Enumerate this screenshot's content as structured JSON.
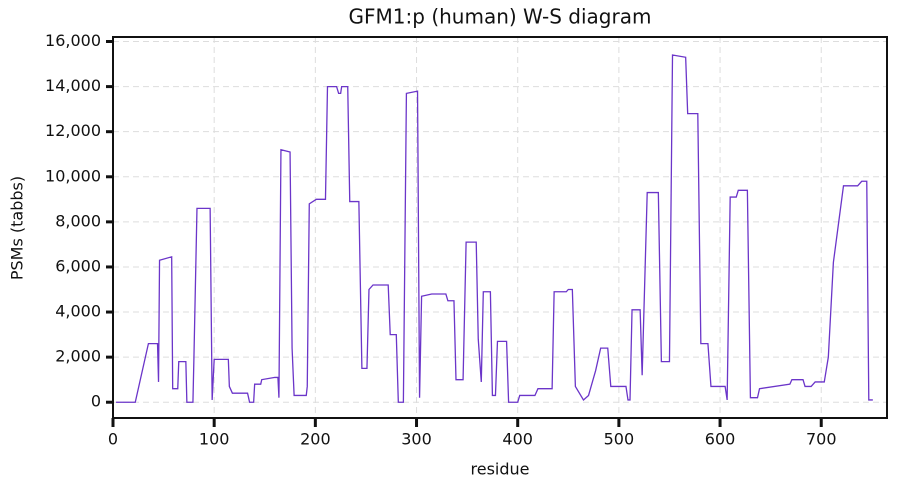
{
  "chart_data": {
    "type": "line",
    "title": "GFM1:p (human) W-S diagram",
    "x_label": "residue",
    "y_label": "PSMs (tabbs)",
    "color": "#6b35c9",
    "grid": true,
    "xlim": [
      0,
      765
    ],
    "ylim": [
      -700,
      16200
    ],
    "xticks": [
      0,
      100,
      200,
      300,
      400,
      500,
      600,
      700
    ],
    "yticks": [
      0,
      {
        "value": 2000,
        "label": "2,000"
      },
      {
        "value": 4000,
        "label": "4,000"
      },
      {
        "value": 6000,
        "label": "6,000"
      },
      {
        "value": 8000,
        "label": "8,000"
      },
      {
        "value": 10000,
        "label": "10,000"
      },
      {
        "value": 12000,
        "label": "12,000"
      },
      {
        "value": 14000,
        "label": "14,000"
      },
      {
        "value": 16000,
        "label": "16,000"
      }
    ],
    "x": [
      3,
      22,
      35,
      44,
      45,
      46,
      58,
      59,
      64,
      65,
      72,
      73,
      79,
      80,
      83,
      96,
      98,
      100,
      114,
      115,
      118,
      133,
      135,
      139,
      140,
      146,
      147,
      160,
      163,
      164,
      166,
      175,
      177,
      179,
      191,
      192,
      194,
      201,
      210,
      212,
      221,
      223,
      225,
      226,
      232,
      234,
      243,
      246,
      251,
      253,
      257,
      272,
      274,
      280,
      282,
      287,
      290,
      301,
      303,
      305,
      315,
      329,
      331,
      337,
      339,
      346,
      349,
      359,
      361,
      364,
      366,
      373,
      375,
      378,
      380,
      389,
      391,
      400,
      402,
      417,
      420,
      434,
      436,
      448,
      450,
      454,
      457,
      465,
      470,
      477,
      482,
      489,
      492,
      507,
      509,
      511,
      513,
      521,
      523,
      528,
      539,
      542,
      550,
      553,
      566,
      568,
      578,
      581,
      588,
      591,
      605,
      607,
      610,
      616,
      618,
      627,
      630,
      637,
      639,
      669,
      671,
      682,
      684,
      690,
      694,
      703,
      707,
      712,
      722,
      736,
      740,
      745,
      747,
      751
    ],
    "values": [
      0,
      0,
      2600,
      2600,
      900,
      6300,
      6450,
      600,
      600,
      1800,
      1800,
      0,
      0,
      2000,
      8600,
      8600,
      100,
      1900,
      1900,
      700,
      400,
      400,
      0,
      0,
      800,
      800,
      1000,
      1100,
      1100,
      200,
      11200,
      11100,
      2400,
      300,
      300,
      700,
      8800,
      9000,
      9000,
      14000,
      14000,
      13700,
      13700,
      14000,
      14000,
      8900,
      8900,
      1500,
      1500,
      5000,
      5200,
      5200,
      3000,
      3000,
      0,
      0,
      13700,
      13800,
      200,
      4700,
      4800,
      4800,
      4500,
      4500,
      1000,
      1000,
      7100,
      7100,
      2800,
      900,
      4900,
      4900,
      300,
      300,
      2700,
      2700,
      0,
      0,
      300,
      300,
      600,
      600,
      4900,
      4900,
      5000,
      5000,
      700,
      100,
      300,
      1400,
      2400,
      2400,
      700,
      700,
      100,
      100,
      4100,
      4100,
      1200,
      9300,
      9300,
      1800,
      1800,
      15400,
      15300,
      12800,
      12800,
      2600,
      2600,
      700,
      700,
      100,
      9100,
      9100,
      9400,
      9400,
      200,
      200,
      600,
      800,
      1000,
      1000,
      700,
      700,
      900,
      900,
      2000,
      6200,
      9600,
      9600,
      9800,
      9800,
      100,
      100
    ]
  }
}
